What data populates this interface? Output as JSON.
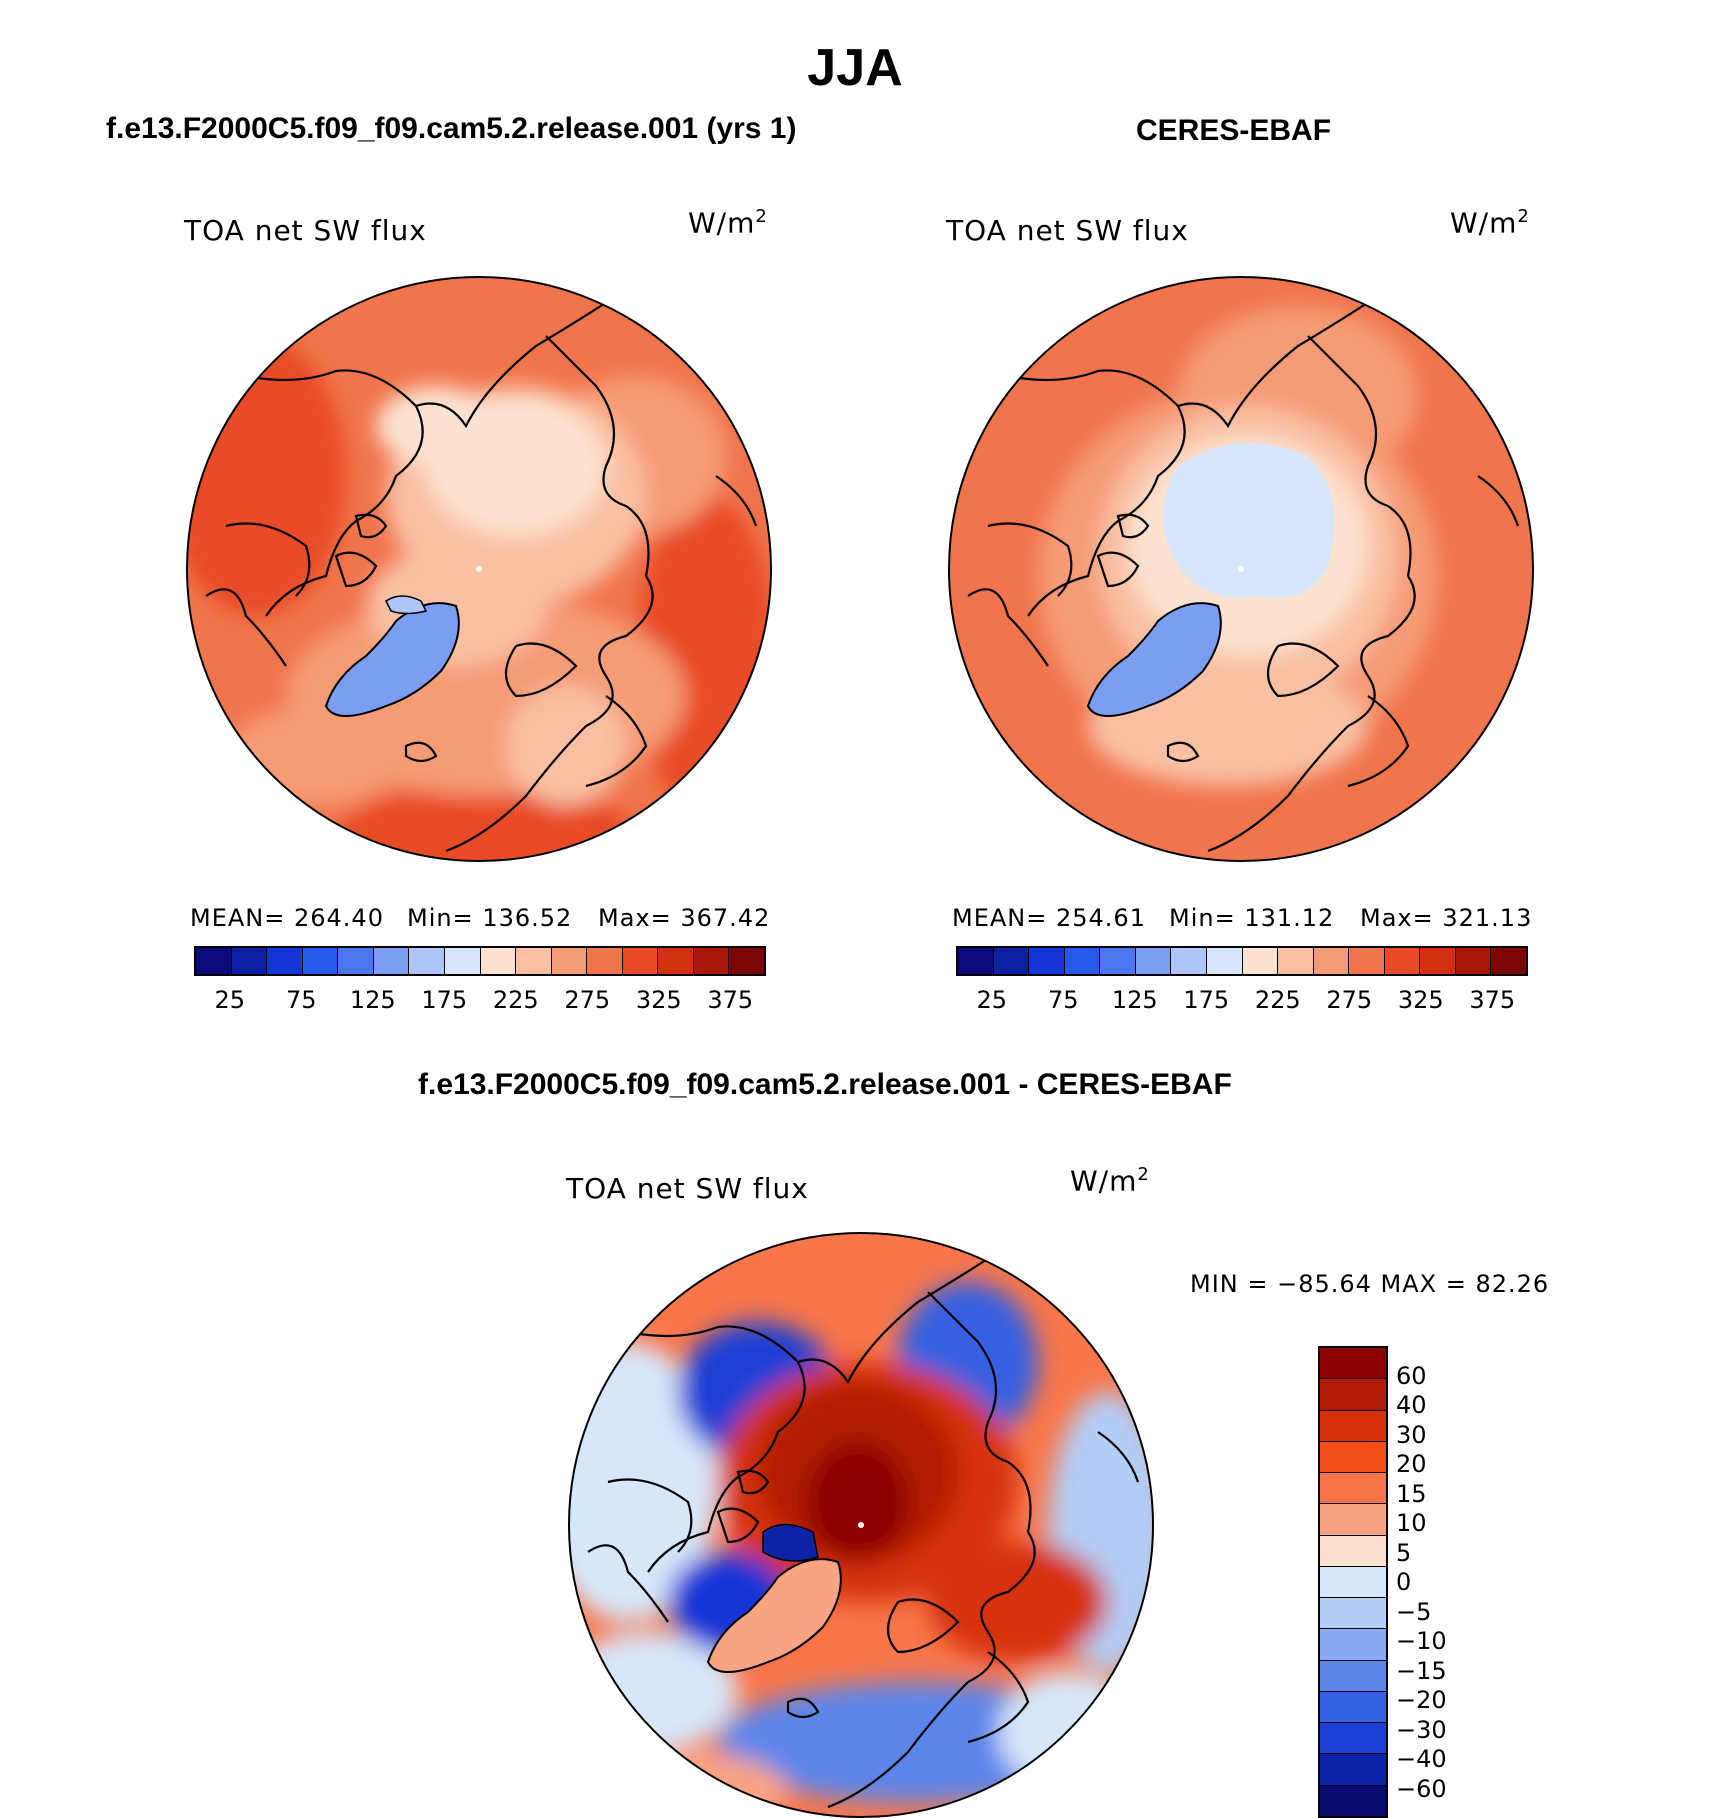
{
  "title": "JJA",
  "panels": [
    {
      "id": "model",
      "title": "f.e13.F2000C5.f09_f09.cam5.2.release.001 (yrs 1)",
      "variable": "TOA net SW flux",
      "units": "W/m",
      "units_exponent": "2",
      "stats": {
        "mean": "MEAN= 264.40",
        "min": "Min= 136.52",
        "max": "Max= 367.42"
      }
    },
    {
      "id": "obs",
      "title": "CERES-EBAF",
      "variable": "TOA net SW flux",
      "units": "W/m",
      "units_exponent": "2",
      "stats": {
        "mean": "MEAN= 254.61",
        "min": "Min= 131.12",
        "max": "Max= 321.13"
      }
    }
  ],
  "colorbar_top": {
    "colors": [
      "#0a0a7a",
      "#0d1fa3",
      "#1436d6",
      "#2459ea",
      "#4a77ee",
      "#7b9ef3",
      "#aec5f8",
      "#d8e6fb",
      "#fde2d0",
      "#f9c0a3",
      "#f59b76",
      "#f0754d",
      "#e84b26",
      "#d2300f",
      "#a91808",
      "#7d0404"
    ],
    "tick_labels": [
      "25",
      "75",
      "125",
      "175",
      "225",
      "275",
      "325",
      "375"
    ]
  },
  "diff_panel": {
    "title": "f.e13.F2000C5.f09_f09.cam5.2.release.001 - CERES-EBAF",
    "variable": "TOA net SW flux",
    "units": "W/m",
    "units_exponent": "2",
    "minmax": "MIN = −85.64 MAX =  82.26"
  },
  "colorbar_diff": {
    "colors": [
      "#8b0000",
      "#b01a05",
      "#d63008",
      "#f24f1c",
      "#f8764a",
      "#f9a482",
      "#fde1cf",
      "#d7e7fa",
      "#b3cdf5",
      "#8aaaf0",
      "#5c85ea",
      "#3461e2",
      "#1a3fd4",
      "#0d23a6",
      "#0a0a6e"
    ],
    "tick_labels": [
      "60",
      "40",
      "30",
      "20",
      "15",
      "10",
      "5",
      "0",
      "−5",
      "−10",
      "−15",
      "−20",
      "−30",
      "−40",
      "−60"
    ]
  }
}
